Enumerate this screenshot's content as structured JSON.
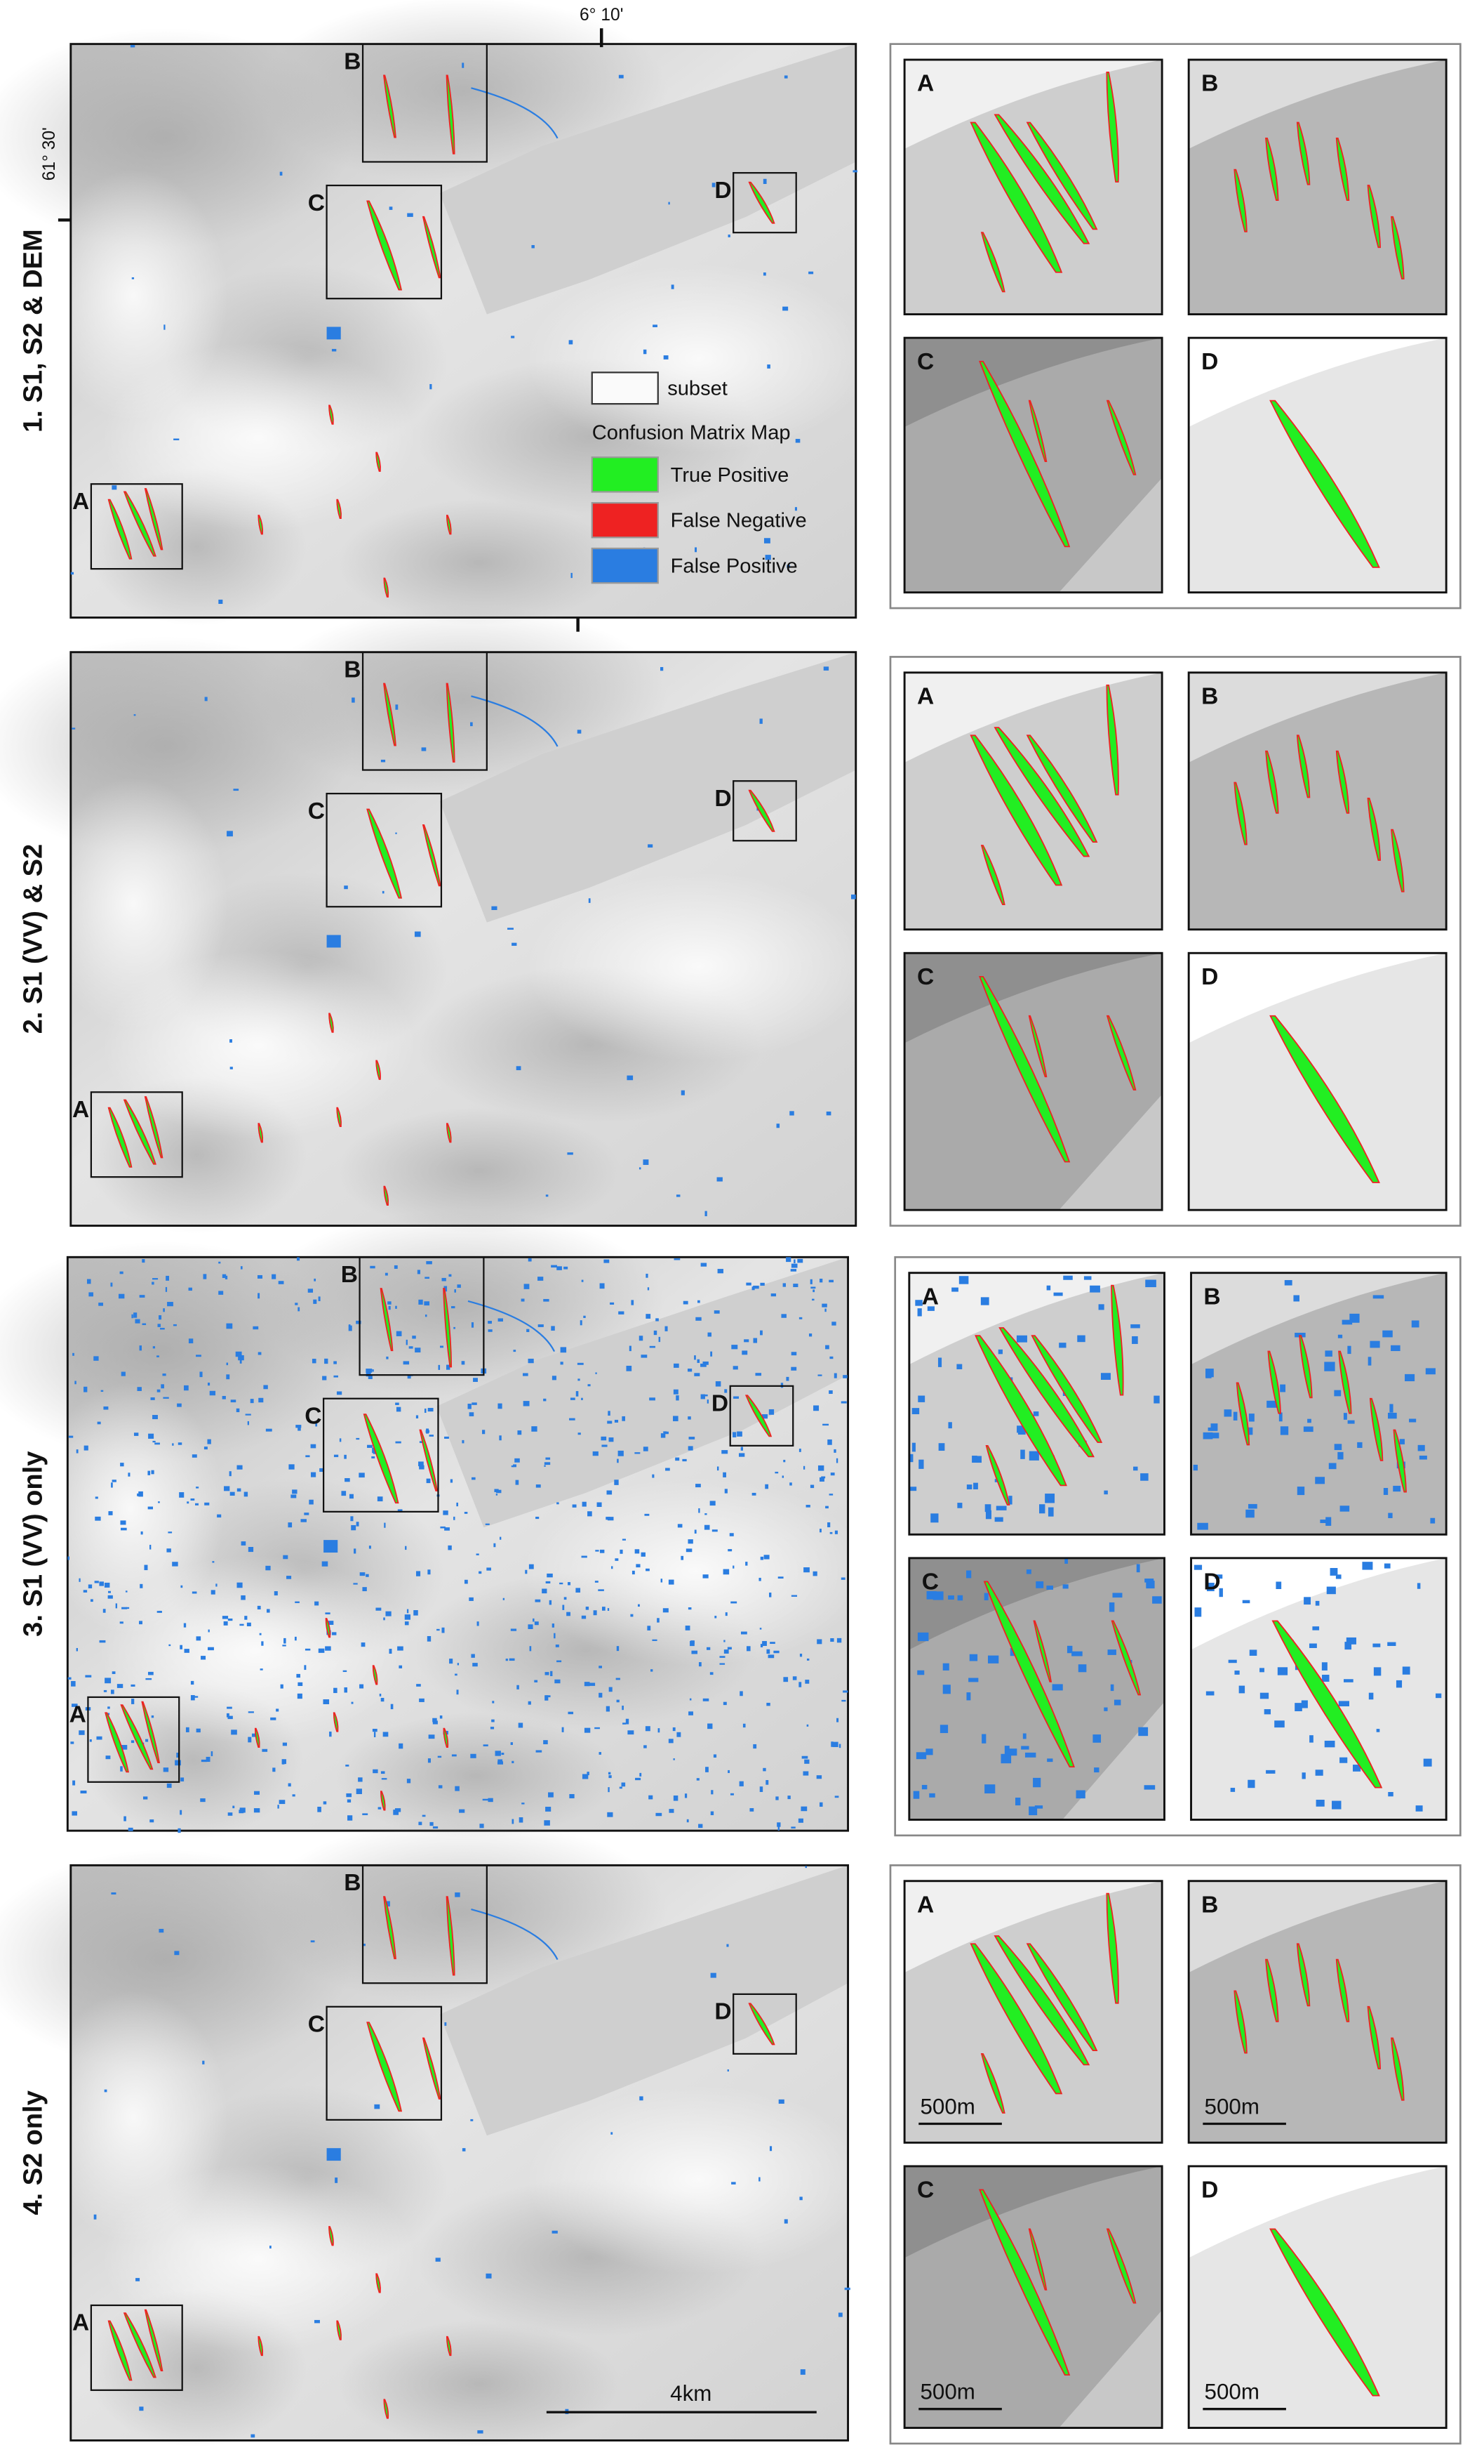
{
  "coordinates": {
    "longitude": "6° 10'",
    "latitude": "61° 30'"
  },
  "legend": {
    "subset": "subset",
    "title": "Confusion Matrix Map",
    "items": [
      "True Positive",
      "False Negative",
      "False Positive"
    ]
  },
  "rows": [
    {
      "label": "1. S1, S2 & DEM",
      "map_labels": [
        "A",
        "B",
        "C",
        "D"
      ],
      "inset_labels": [
        "A",
        "B",
        "C",
        "D"
      ]
    },
    {
      "label": "2. S1 (VV) & S2",
      "map_labels": [
        "A",
        "B",
        "C",
        "D"
      ],
      "inset_labels": [
        "A",
        "B",
        "C",
        "D"
      ]
    },
    {
      "label": "3. S1 (VV) only",
      "map_labels": [
        "A",
        "B",
        "C",
        "D"
      ],
      "inset_labels": [
        "A",
        "B",
        "C",
        "D"
      ]
    },
    {
      "label": "4. S2 only",
      "map_labels": [
        "A",
        "B",
        "C",
        "D"
      ],
      "inset_labels": [
        "A",
        "B",
        "C",
        "D"
      ]
    }
  ],
  "scale_bars": {
    "main": "4km",
    "insets": [
      "500m",
      "500m",
      "500m",
      "500m"
    ]
  }
}
